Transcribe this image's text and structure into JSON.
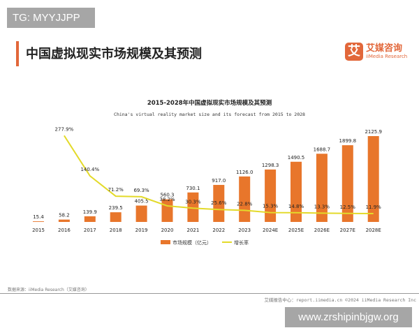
{
  "watermark_top": "TG: MYYJJPP",
  "watermark_bottom": "www.zrshipinbjgw.org",
  "page_title": "中国虚拟现实市场规模及其预测",
  "logo": {
    "mark": "艾",
    "cn": "艾媒咨询",
    "en": "iiMedia Research"
  },
  "source": "数据来源：iiMedia Research（艾媒咨询）",
  "footer": "艾媒报告中心：report.iimedia.cn  ©2024  iiMedia Research  Inc",
  "colors": {
    "bar": "#e8762b",
    "line": "#e3da2a",
    "accent": "#e2673a"
  },
  "chart_data": {
    "type": "bar+line",
    "title": "2015-2028年中国虚拟现实市场规模及其预测",
    "subtitle": "China's virtual reality market size and its forecast from 2015 to 2028",
    "categories": [
      "2015",
      "2016",
      "2017",
      "2018",
      "2019",
      "2020",
      "2021",
      "2022",
      "2023",
      "2024E",
      "2025E",
      "2026E",
      "2027E",
      "2028E"
    ],
    "series": [
      {
        "name": "市场规模（亿元）",
        "type": "bar",
        "values": [
          15.4,
          58.2,
          139.9,
          239.5,
          405.5,
          560.3,
          730.1,
          917.0,
          1126.0,
          1298.3,
          1490.5,
          1688.7,
          1899.8,
          2125.9
        ],
        "labels": [
          "15.4",
          "58.2",
          "139.9",
          "239.5",
          "405.5",
          "560.3",
          "730.1",
          "917.0",
          "1126.0",
          "1298.3",
          "1490.5",
          "1688.7",
          "1899.8",
          "2125.9"
        ]
      },
      {
        "name": "增长率",
        "type": "line",
        "values": [
          null,
          277.9,
          140.4,
          71.2,
          69.3,
          38.2,
          30.3,
          25.6,
          22.8,
          15.3,
          14.8,
          13.3,
          12.5,
          11.9
        ],
        "labels": [
          "",
          "277.9%",
          "140.4%",
          "71.2%",
          "69.3%",
          "38.2%",
          "30.3%",
          "25.6%",
          "22.8%",
          "15.3%",
          "14.8%",
          "13.3%",
          "12.5%",
          "11.9%"
        ]
      }
    ],
    "legend": "bottom",
    "grid": false
  }
}
